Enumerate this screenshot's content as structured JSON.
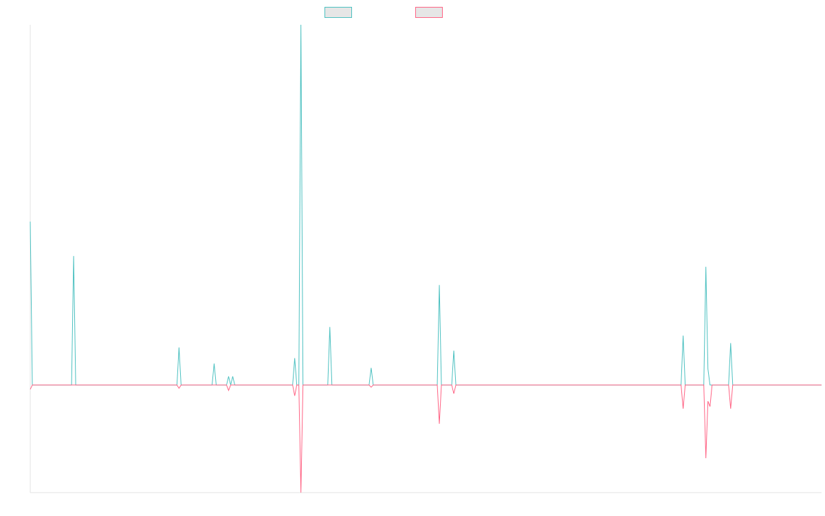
{
  "chart_data": {
    "type": "line",
    "title": "",
    "xlabel": "",
    "ylabel": "",
    "grid": false,
    "legend_position": "top-center",
    "ylim": [
      -1.0,
      3.35
    ],
    "x": [
      0,
      1,
      2,
      3,
      4,
      5,
      6,
      7,
      8,
      9,
      10,
      11,
      12,
      13,
      14,
      15,
      16,
      17,
      18,
      19,
      20,
      21,
      22,
      23,
      24,
      25,
      26,
      27,
      28,
      29,
      30,
      31,
      32,
      33,
      34,
      35,
      36,
      37,
      38,
      39,
      40,
      41,
      42,
      43,
      44,
      45,
      46,
      47,
      48,
      49,
      50,
      51,
      52,
      53,
      54,
      55,
      56,
      57,
      58,
      59,
      60,
      61,
      62,
      63,
      64,
      65,
      66,
      67,
      68,
      69,
      70,
      71,
      72,
      73,
      74,
      75,
      76,
      77,
      78,
      79,
      80,
      81,
      82,
      83,
      84,
      85,
      86,
      87,
      88,
      89,
      90,
      91,
      92,
      93,
      94,
      95,
      96,
      97,
      98,
      99,
      100,
      101,
      102,
      103,
      104,
      105,
      106,
      107,
      108,
      109,
      110,
      111,
      112,
      113,
      114,
      115,
      116,
      117,
      118,
      119,
      120,
      121,
      122,
      123,
      124,
      125,
      126,
      127,
      128,
      129,
      130,
      131,
      132,
      133,
      134,
      135,
      136,
      137,
      138,
      139,
      140,
      141,
      142,
      143,
      144,
      145,
      146,
      147,
      148,
      149,
      150,
      151,
      152,
      153,
      154,
      155,
      156,
      157,
      158,
      159,
      160,
      161,
      162,
      163,
      164,
      165,
      166,
      167,
      168,
      169,
      170,
      171,
      172,
      173,
      174,
      175,
      176,
      177,
      178,
      179,
      180,
      181,
      182,
      183,
      184,
      185,
      186,
      187,
      188,
      189,
      190,
      191,
      192,
      193,
      194,
      195,
      196,
      197,
      198,
      199,
      200,
      201,
      202,
      203,
      204,
      205,
      206,
      207,
      208,
      209,
      210,
      211,
      212,
      213,
      214,
      215,
      216,
      217,
      218,
      219,
      220,
      221,
      222,
      223,
      224,
      225,
      226,
      227,
      228,
      229,
      230,
      231,
      232,
      233,
      234,
      235,
      236,
      237,
      238,
      239,
      240,
      241,
      242,
      243,
      244,
      245,
      246,
      247,
      248,
      249,
      250,
      251,
      252,
      253,
      254,
      255,
      256,
      257,
      258,
      259,
      260,
      261,
      262,
      263,
      264,
      265,
      266,
      267,
      268,
      269,
      270,
      271,
      272,
      273,
      274,
      275,
      276,
      277,
      278,
      279,
      280,
      281,
      282,
      283,
      284,
      285,
      286,
      287,
      288,
      289,
      290,
      291,
      292,
      293,
      294,
      295,
      296,
      297,
      298,
      299,
      300,
      301,
      302,
      303,
      304,
      305,
      306,
      307,
      308,
      309,
      310,
      311,
      312,
      313,
      314,
      315,
      316,
      317,
      318,
      319,
      320,
      321,
      322,
      323,
      324,
      325,
      326,
      327,
      328,
      329,
      330,
      331,
      332,
      333,
      334,
      335,
      336,
      337,
      338,
      339,
      340,
      341,
      342,
      343,
      344,
      345,
      346,
      347,
      348,
      349,
      350,
      351,
      352,
      353,
      354,
      355,
      356,
      357,
      358,
      359,
      360,
      361,
      362,
      363,
      364,
      365,
      366,
      367,
      368,
      369,
      370,
      371,
      372,
      373,
      374,
      375,
      376,
      377,
      378,
      379,
      380,
      381,
      382,
      383
    ],
    "series": [
      {
        "color": "#4bc0c0",
        "sparse_values": {
          "0": 1.52,
          "21": 1.2,
          "72": 0.35,
          "89": 0.2,
          "96": 0.08,
          "98": 0.08,
          "128": 0.25,
          "131": 3.35,
          "145": 0.54,
          "165": 0.16,
          "198": 0.93,
          "205": 0.32,
          "316": 0.46,
          "327": 1.1,
          "328": 0.15,
          "339": 0.39
        }
      },
      {
        "color": "#ff6384",
        "sparse_values": {
          "0": -0.04,
          "72": -0.03,
          "96": -0.05,
          "128": -0.1,
          "131": -1.0,
          "165": -0.02,
          "198": -0.36,
          "205": -0.08,
          "316": -0.22,
          "327": -0.68,
          "328": -0.15,
          "329": -0.2,
          "339": -0.22
        }
      }
    ]
  }
}
